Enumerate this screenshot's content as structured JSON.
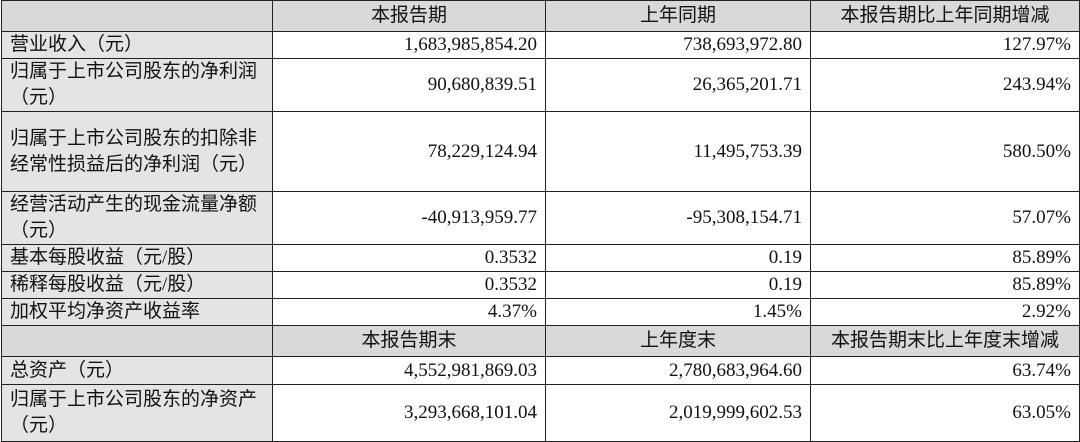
{
  "table": {
    "sections": [
      {
        "header": [
          "本报告期",
          "上年同期",
          "本报告期比上年同期增减"
        ],
        "rows": [
          [
            "营业收入（元）",
            "1,683,985,854.20",
            "738,693,972.80",
            "127.97%"
          ],
          [
            "归属于上市公司股东的净利润（元）",
            "90,680,839.51",
            "26,365,201.71",
            "243.94%"
          ],
          [
            "归属于上市公司股东的扣除非经常性损益后的净利润（元）",
            "78,229,124.94",
            "11,495,753.39",
            "580.50%"
          ],
          [
            "经营活动产生的现金流量净额（元）",
            "-40,913,959.77",
            "-95,308,154.71",
            "57.07%"
          ],
          [
            "基本每股收益（元/股）",
            "0.3532",
            "0.19",
            "85.89%"
          ],
          [
            "稀释每股收益（元/股）",
            "0.3532",
            "0.19",
            "85.89%"
          ],
          [
            "加权平均净资产收益率",
            "4.37%",
            "1.45%",
            "2.92%"
          ]
        ]
      },
      {
        "header": [
          "本报告期末",
          "上年度末",
          "本报告期末比上年度末增减"
        ],
        "rows": [
          [
            "总资产（元）",
            "4,552,981,869.03",
            "2,780,683,964.60",
            "63.74%"
          ],
          [
            "归属于上市公司股东的净资产（元）",
            "3,293,668,101.04",
            "2,019,999,602.53",
            "63.05%"
          ]
        ]
      }
    ]
  }
}
